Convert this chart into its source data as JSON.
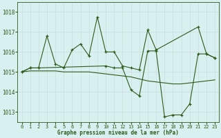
{
  "title": "Graphe pression niveau de la mer (hPa)",
  "bg_color": "#d8f0f0",
  "grid_color": "#c0dede",
  "line_color": "#2d5a1b",
  "xlim": [
    -0.5,
    23.5
  ],
  "ylim": [
    1012.5,
    1018.5
  ],
  "yticks": [
    1013,
    1014,
    1015,
    1016,
    1017,
    1018
  ],
  "xticks": [
    0,
    1,
    2,
    3,
    4,
    5,
    6,
    7,
    8,
    9,
    10,
    11,
    12,
    13,
    14,
    15,
    16,
    17,
    18,
    19,
    20,
    21,
    22,
    23
  ],
  "series1": {
    "x": [
      0,
      1,
      2,
      3,
      4,
      5,
      6,
      7,
      8,
      9,
      10,
      11,
      12,
      13,
      14,
      15,
      16,
      21,
      22,
      23
    ],
    "y": [
      1015.0,
      1015.2,
      1015.2,
      1016.8,
      1015.4,
      1015.2,
      1016.1,
      1016.4,
      1015.8,
      1017.75,
      1016.0,
      1016.0,
      1015.3,
      1015.2,
      1015.1,
      1017.1,
      1016.1,
      1017.25,
      1015.9,
      1015.7
    ]
  },
  "series2": {
    "x": [
      0,
      1,
      2,
      3,
      4,
      5,
      6,
      7,
      8,
      9,
      10,
      11,
      12,
      13,
      14,
      15,
      16,
      17,
      18,
      19,
      20,
      21,
      22,
      23
    ],
    "y": [
      1015.0,
      1015.05,
      1015.05,
      1015.05,
      1015.05,
      1015.0,
      1015.0,
      1015.0,
      1015.0,
      1014.95,
      1014.9,
      1014.85,
      1014.8,
      1014.75,
      1014.65,
      1014.55,
      1014.5,
      1014.45,
      1014.4,
      1014.4,
      1014.45,
      1014.5,
      1014.55,
      1014.6
    ]
  },
  "series3": {
    "x": [
      0,
      1,
      2,
      10,
      11,
      12,
      13,
      14,
      15,
      16,
      17,
      18,
      19,
      20,
      21,
      22,
      23
    ],
    "y": [
      1015.0,
      1015.2,
      1015.2,
      1015.3,
      1015.2,
      1015.2,
      1014.1,
      1013.8,
      1016.05,
      1016.05,
      1012.75,
      1012.85,
      1012.85,
      1013.4,
      1015.9,
      1015.9,
      1015.7
    ]
  }
}
